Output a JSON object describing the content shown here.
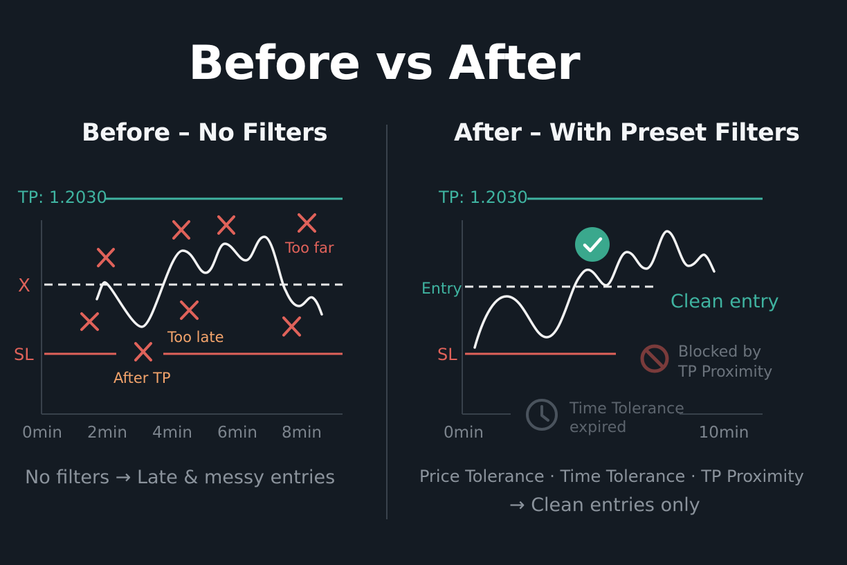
{
  "title": "Before vs  After",
  "before": {
    "heading": "Before – No Filters",
    "tp_label": "TP: 1.2030",
    "entry_label": "X",
    "sl_label": "SL",
    "annotations": {
      "too_far": "Too far",
      "too_late": "Too late",
      "after_tp": "After TP"
    },
    "x_ticks": [
      "0min",
      "2min",
      "4min",
      "6min",
      "8min"
    ],
    "caption": "No filters → Late & messy entries"
  },
  "after": {
    "heading": "After – With Preset Filters",
    "tp_label": "TP: 1.2030",
    "entry_label": "Entry",
    "sl_label": "SL",
    "clean_entry": "Clean entry",
    "blocked_line1": "Blocked by",
    "blocked_line2": "TP Proximity",
    "time_line1": "Time Tolerance",
    "time_line2": "expired",
    "x_ticks": [
      "0min",
      "10min"
    ],
    "caption_line1": "Price Tolerance · Time Tolerance · TP Proximity",
    "caption_line2": "→ Clean entries only"
  },
  "colors": {
    "background": "#141b23",
    "tp": "#3fb3a0",
    "sl": "#e0625a",
    "cross": "#e0625a",
    "annotation_orange": "#f2a36b",
    "check": "#3aa88d",
    "muted": "#8b939c"
  },
  "icons": [
    "cross-icon",
    "check-icon",
    "blocked-icon",
    "clock-icon"
  ]
}
